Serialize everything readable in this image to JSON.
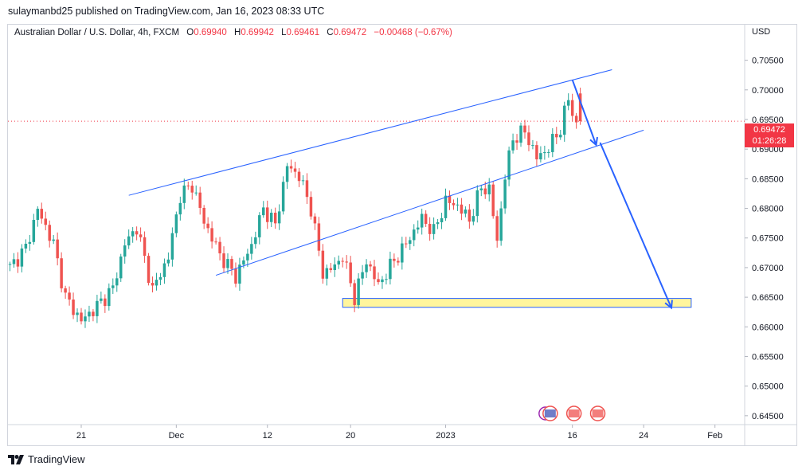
{
  "publisher": {
    "text": "sulaymanbd25 published on TradingView.com, Jan 16, 2023 08:33 UTC"
  },
  "legend": {
    "symbol": "Australian Dollar / U.S. Dollar, 4h, FXCM",
    "open_label": "O",
    "open": "0.69940",
    "high_label": "H",
    "high": "0.69942",
    "low_label": "L",
    "low": "0.69461",
    "close_label": "C",
    "close": "0.69472",
    "change": "−0.00468 (−0.67%)"
  },
  "axis": {
    "currency": "USD"
  },
  "price_tag": {
    "price": "0.69472",
    "countdown": "01:26:28"
  },
  "footer": {
    "brand": "TradingView",
    "logo_icon": "tradingview-logo-icon"
  },
  "event_icons": [
    "event-icon-au",
    "event-icon-us",
    "event-icon-us"
  ],
  "colors": {
    "up": "#26a69a",
    "down": "#ef5350",
    "trend": "#2962ff",
    "zone_fill": "#fff59d",
    "last_price": "#f23645"
  },
  "chart_data": {
    "type": "candlestick",
    "title": "Australian Dollar / U.S. Dollar, 4h, FXCM",
    "ylim": [
      0.6435,
      0.711
    ],
    "y_ticks": [
      "0.70500",
      "0.70000",
      "0.69500",
      "0.69000",
      "0.68500",
      "0.68000",
      "0.67500",
      "0.67000",
      "0.66500",
      "0.66000",
      "0.65500",
      "0.65000",
      "0.64500"
    ],
    "x_ticks": [
      {
        "label": "21",
        "index": 18
      },
      {
        "label": "Dec",
        "index": 42
      },
      {
        "label": "12",
        "index": 65
      },
      {
        "label": "20",
        "index": 86
      },
      {
        "label": "2023",
        "index": 110
      },
      {
        "label": "16",
        "index": 142
      },
      {
        "label": "24",
        "index": 160
      },
      {
        "label": "Feb",
        "index": 178
      }
    ],
    "x_count": 186,
    "last_price": 0.69472,
    "trendlines": [
      {
        "from": {
          "i": 30,
          "p": 0.6822
        },
        "to": {
          "i": 152,
          "p": 0.7034
        }
      },
      {
        "from": {
          "i": 52,
          "p": 0.6687
        },
        "to": {
          "i": 160,
          "p": 0.6932
        }
      }
    ],
    "arrows": [
      {
        "from": {
          "i": 142,
          "p": 0.7017
        },
        "to": {
          "i": 148,
          "p": 0.6907
        }
      },
      {
        "from": {
          "i": 149,
          "p": 0.6911
        },
        "to": {
          "i": 167,
          "p": 0.6632
        }
      }
    ],
    "support_zone": {
      "from_i": 84,
      "to_i": 172,
      "top": 0.6648,
      "bottom": 0.6633
    },
    "pivots": [
      [
        0,
        0.67
      ],
      [
        4,
        0.6733
      ],
      [
        7,
        0.6798
      ],
      [
        11,
        0.674
      ],
      [
        14,
        0.665
      ],
      [
        18,
        0.661
      ],
      [
        22,
        0.6635
      ],
      [
        26,
        0.6665
      ],
      [
        29,
        0.674
      ],
      [
        32,
        0.6768
      ],
      [
        36,
        0.6662
      ],
      [
        40,
        0.6718
      ],
      [
        43,
        0.6822
      ],
      [
        46,
        0.684
      ],
      [
        49,
        0.6778
      ],
      [
        53,
        0.6722
      ],
      [
        57,
        0.6685
      ],
      [
        61,
        0.6738
      ],
      [
        64,
        0.68
      ],
      [
        67,
        0.6772
      ],
      [
        70,
        0.6872
      ],
      [
        73,
        0.6855
      ],
      [
        76,
        0.68
      ],
      [
        79,
        0.669
      ],
      [
        82,
        0.6702
      ],
      [
        84,
        0.672
      ],
      [
        87,
        0.665
      ],
      [
        90,
        0.6712
      ],
      [
        93,
        0.667
      ],
      [
        96,
        0.6702
      ],
      [
        100,
        0.674
      ],
      [
        104,
        0.6783
      ],
      [
        107,
        0.676
      ],
      [
        110,
        0.6812
      ],
      [
        113,
        0.6805
      ],
      [
        116,
        0.678
      ],
      [
        119,
        0.6835
      ],
      [
        121,
        0.6832
      ],
      [
        123,
        0.6745
      ],
      [
        125,
        0.6855
      ],
      [
        127,
        0.6918
      ],
      [
        130,
        0.693
      ],
      [
        133,
        0.6885
      ],
      [
        136,
        0.6902
      ],
      [
        139,
        0.6935
      ],
      [
        141,
        0.6985
      ],
      [
        143,
        0.694
      ],
      [
        144,
        0.6947
      ]
    ]
  }
}
